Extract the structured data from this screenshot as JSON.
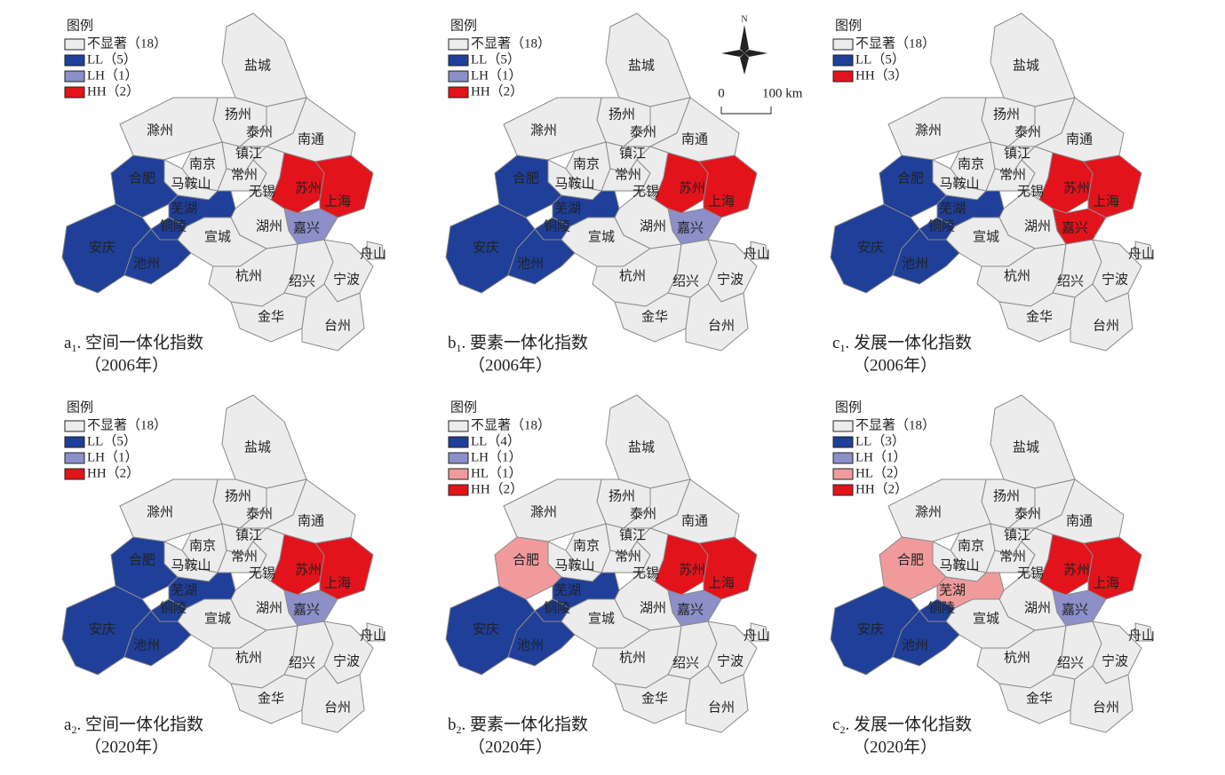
{
  "cities": [
    "盐城",
    "扬州",
    "泰州",
    "南通",
    "滁州",
    "南京",
    "镇江",
    "常州",
    "马鞍山",
    "合肥",
    "无锡",
    "苏州",
    "上海",
    "嘉兴",
    "湖州",
    "芜湖",
    "铜陵",
    "宣城",
    "安庆",
    "池州",
    "杭州",
    "绍兴",
    "宁波",
    "舟山",
    "金华",
    "台州"
  ],
  "compass": {
    "label": "N"
  },
  "scale_bar": {
    "labels": [
      "0",
      "100 km"
    ]
  },
  "panels": [
    {
      "legend": {
        "title": "图例",
        "items": [
          {
            "label": "不显著（18）",
            "color": "#ececec",
            "cities": []
          },
          {
            "label": "LL（5）",
            "color": "#1f3f99",
            "cities": [
              "合肥",
              "安庆",
              "池州",
              "铜陵",
              "芜湖"
            ]
          },
          {
            "label": "LH（1）",
            "color": "#8c8fc8",
            "cities": [
              "嘉兴"
            ]
          },
          {
            "label": "HH（2）",
            "color": "#e3131c",
            "cities": [
              "苏州",
              "上海"
            ]
          }
        ]
      },
      "caption": {
        "letter": "a",
        "index": "1",
        "title": ". 空间一体化指数",
        "year": "（2006年）"
      }
    },
    {
      "legend": {
        "title": "图例",
        "items": [
          {
            "label": "不显著（18）",
            "color": "#ececec",
            "cities": []
          },
          {
            "label": "LL（5）",
            "color": "#1f3f99",
            "cities": [
              "合肥",
              "安庆",
              "池州",
              "铜陵",
              "芜湖"
            ]
          },
          {
            "label": "LH（1）",
            "color": "#8c8fc8",
            "cities": [
              "嘉兴"
            ]
          },
          {
            "label": "HH（2）",
            "color": "#e3131c",
            "cities": [
              "苏州",
              "上海"
            ]
          }
        ]
      },
      "caption": {
        "letter": "b",
        "index": "1",
        "title": ". 要素一体化指数",
        "year": "（2006年）"
      }
    },
    {
      "legend": {
        "title": "图例",
        "items": [
          {
            "label": "不显著（18）",
            "color": "#ececec",
            "cities": []
          },
          {
            "label": "LL（5）",
            "color": "#1f3f99",
            "cities": [
              "合肥",
              "安庆",
              "池州",
              "铜陵",
              "芜湖"
            ]
          },
          {
            "label": "HH（3）",
            "color": "#e3131c",
            "cities": [
              "苏州",
              "上海",
              "嘉兴"
            ]
          }
        ]
      },
      "caption": {
        "letter": "c",
        "index": "1",
        "title": ". 发展一体化指数",
        "year": "（2006年）"
      }
    },
    {
      "legend": {
        "title": "图例",
        "items": [
          {
            "label": "不显著（18）",
            "color": "#ececec",
            "cities": []
          },
          {
            "label": "LL（5）",
            "color": "#1f3f99",
            "cities": [
              "合肥",
              "安庆",
              "池州",
              "铜陵",
              "芜湖"
            ]
          },
          {
            "label": "LH（1）",
            "color": "#8c8fc8",
            "cities": [
              "嘉兴"
            ]
          },
          {
            "label": "HH（2）",
            "color": "#e3131c",
            "cities": [
              "苏州",
              "上海"
            ]
          }
        ]
      },
      "caption": {
        "letter": "a",
        "index": "2",
        "title": ". 空间一体化指数",
        "year": "（2020年）"
      }
    },
    {
      "legend": {
        "title": "图例",
        "items": [
          {
            "label": "不显著（18）",
            "color": "#ececec",
            "cities": []
          },
          {
            "label": "LL（4）",
            "color": "#1f3f99",
            "cities": [
              "安庆",
              "池州",
              "铜陵",
              "芜湖"
            ]
          },
          {
            "label": "LH（1）",
            "color": "#8c8fc8",
            "cities": [
              "嘉兴"
            ]
          },
          {
            "label": "HL（1）",
            "color": "#f09a9c",
            "cities": [
              "合肥"
            ]
          },
          {
            "label": "HH（2）",
            "color": "#e3131c",
            "cities": [
              "苏州",
              "上海"
            ]
          }
        ]
      },
      "caption": {
        "letter": "b",
        "index": "2",
        "title": ". 要素一体化指数",
        "year": "（2020年）"
      }
    },
    {
      "legend": {
        "title": "图例",
        "items": [
          {
            "label": "不显著（18）",
            "color": "#ececec",
            "cities": []
          },
          {
            "label": "LL（3）",
            "color": "#1f3f99",
            "cities": [
              "安庆",
              "池州",
              "铜陵"
            ]
          },
          {
            "label": "LH（1）",
            "color": "#8c8fc8",
            "cities": [
              "嘉兴"
            ]
          },
          {
            "label": "HL（2）",
            "color": "#f09a9c",
            "cities": [
              "合肥",
              "芜湖"
            ]
          },
          {
            "label": "HH（2）",
            "color": "#e3131c",
            "cities": [
              "苏州",
              "上海"
            ]
          }
        ]
      },
      "caption": {
        "letter": "c",
        "index": "2",
        "title": ". 发展一体化指数",
        "year": "（2020年）"
      }
    }
  ]
}
